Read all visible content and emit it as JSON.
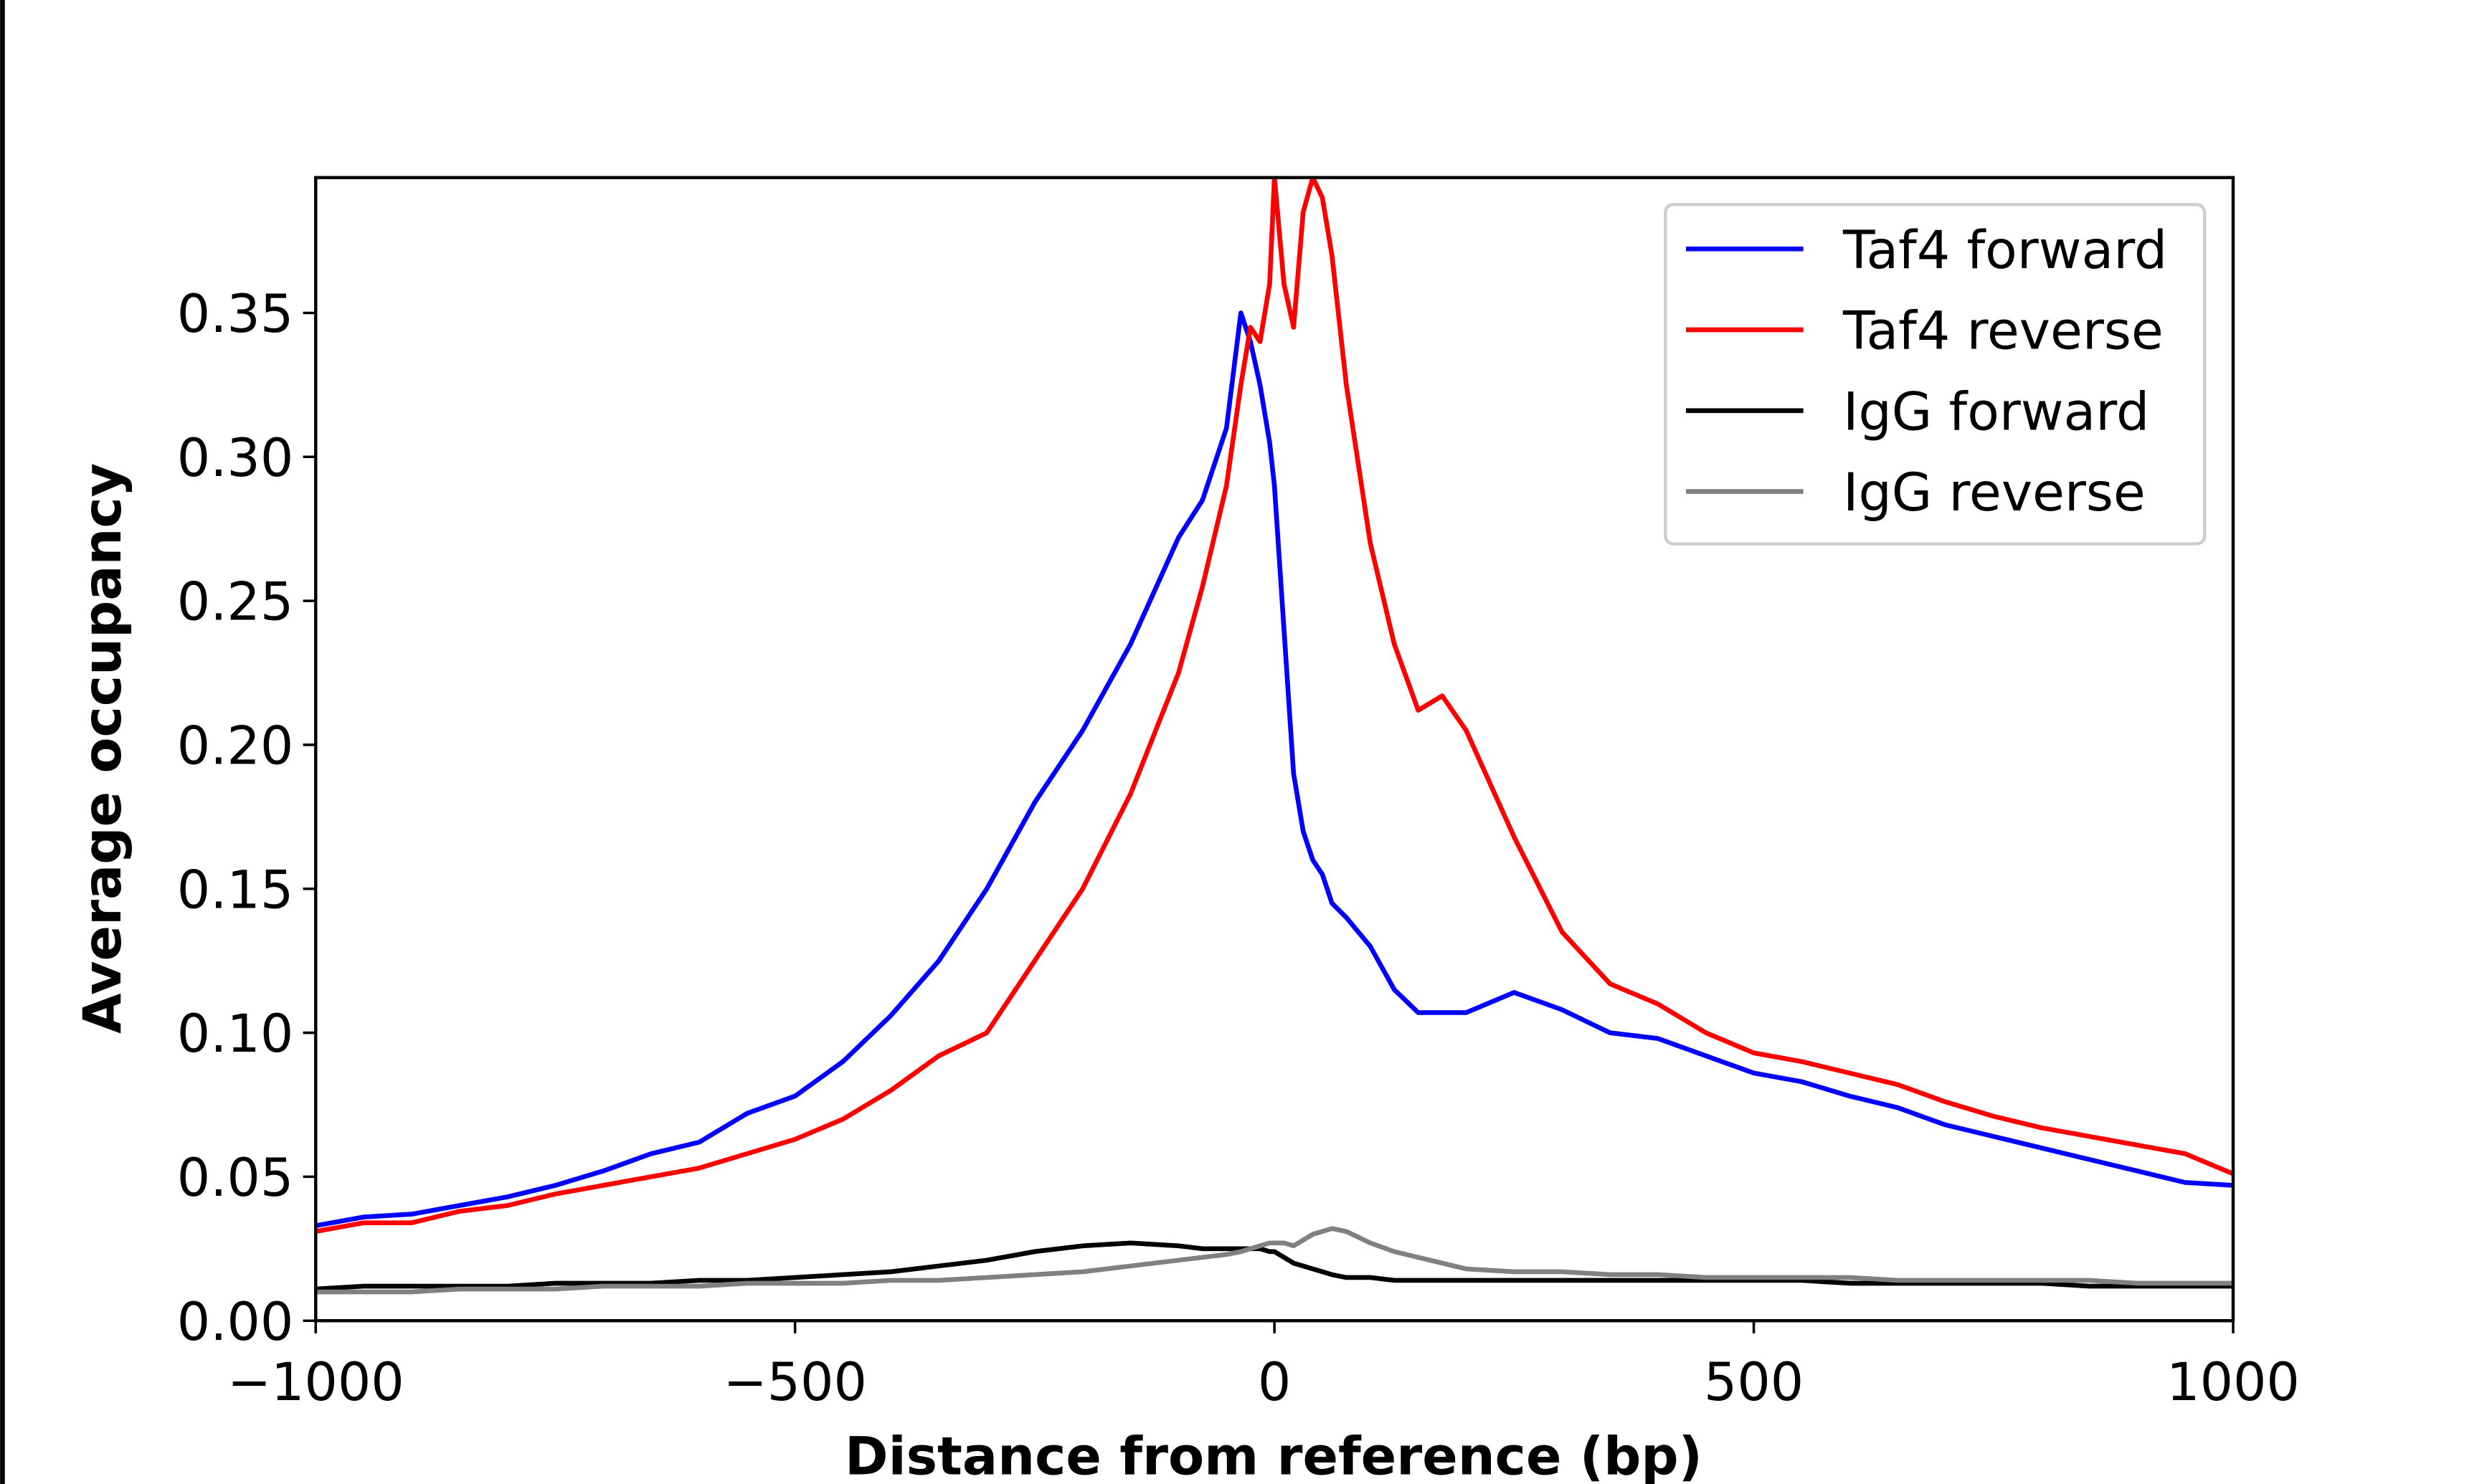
{
  "chart_data": {
    "type": "line",
    "x_label": "Distance from reference (bp)",
    "y_label": "Average occupancy",
    "xlim": [
      -1000,
      1000
    ],
    "ylim": [
      0,
      0.397
    ],
    "xticks": [
      {
        "value": -1000,
        "label": "−1000"
      },
      {
        "value": -500,
        "label": "−500"
      },
      0,
      500,
      1000
    ],
    "yticks": [
      {
        "value": 0,
        "label": "0.00"
      },
      0.05,
      {
        "value": 0.1,
        "label": "0.10"
      },
      0.15,
      {
        "value": 0.2,
        "label": "0.20"
      },
      0.25,
      {
        "value": 0.3,
        "label": "0.30"
      },
      0.35
    ],
    "legend": "upper right",
    "x": [
      -1000,
      -950,
      -900,
      -850,
      -800,
      -750,
      -700,
      -650,
      -600,
      -550,
      -500,
      -450,
      -400,
      -350,
      -300,
      -250,
      -200,
      -150,
      -100,
      -75,
      -50,
      -35,
      -25,
      -15,
      -5,
      0,
      10,
      20,
      30,
      40,
      50,
      60,
      75,
      100,
      125,
      150,
      175,
      200,
      250,
      300,
      350,
      400,
      450,
      500,
      550,
      600,
      650,
      700,
      750,
      800,
      850,
      900,
      950,
      1000
    ],
    "series": [
      {
        "name": "Taf4 forward",
        "color": "#0000ff",
        "values": [
          0.033,
          0.036,
          0.037,
          0.04,
          0.043,
          0.047,
          0.052,
          0.058,
          0.062,
          0.072,
          0.078,
          0.09,
          0.106,
          0.125,
          0.15,
          0.18,
          0.205,
          0.235,
          0.272,
          0.285,
          0.31,
          0.35,
          0.34,
          0.325,
          0.305,
          0.29,
          0.24,
          0.19,
          0.17,
          0.16,
          0.155,
          0.145,
          0.14,
          0.13,
          0.115,
          0.107,
          0.107,
          0.107,
          0.114,
          0.108,
          0.1,
          0.098,
          0.092,
          0.086,
          0.083,
          0.078,
          0.074,
          0.068,
          0.064,
          0.06,
          0.056,
          0.052,
          0.048,
          0.047
        ]
      },
      {
        "name": "Taf4 reverse",
        "color": "#ff0000",
        "values": [
          0.031,
          0.034,
          0.034,
          0.038,
          0.04,
          0.044,
          0.047,
          0.05,
          0.053,
          0.058,
          0.063,
          0.07,
          0.08,
          0.092,
          0.1,
          0.125,
          0.15,
          0.183,
          0.225,
          0.255,
          0.29,
          0.325,
          0.345,
          0.34,
          0.36,
          0.397,
          0.36,
          0.345,
          0.385,
          0.397,
          0.39,
          0.37,
          0.325,
          0.27,
          0.235,
          0.212,
          0.217,
          0.205,
          0.168,
          0.135,
          0.117,
          0.11,
          0.1,
          0.093,
          0.09,
          0.086,
          0.082,
          0.076,
          0.071,
          0.067,
          0.064,
          0.061,
          0.058,
          0.051
        ]
      },
      {
        "name": "IgG forward",
        "color": "#000000",
        "values": [
          0.011,
          0.012,
          0.012,
          0.012,
          0.012,
          0.013,
          0.013,
          0.013,
          0.014,
          0.014,
          0.015,
          0.016,
          0.017,
          0.019,
          0.021,
          0.024,
          0.026,
          0.027,
          0.026,
          0.025,
          0.025,
          0.025,
          0.025,
          0.025,
          0.024,
          0.024,
          0.022,
          0.02,
          0.019,
          0.018,
          0.017,
          0.016,
          0.015,
          0.015,
          0.014,
          0.014,
          0.014,
          0.014,
          0.014,
          0.014,
          0.014,
          0.014,
          0.014,
          0.014,
          0.014,
          0.013,
          0.013,
          0.013,
          0.013,
          0.013,
          0.012,
          0.012,
          0.012,
          0.012
        ]
      },
      {
        "name": "IgG reverse",
        "color": "#808080",
        "values": [
          0.01,
          0.01,
          0.01,
          0.011,
          0.011,
          0.011,
          0.012,
          0.012,
          0.012,
          0.013,
          0.013,
          0.013,
          0.014,
          0.014,
          0.015,
          0.016,
          0.017,
          0.019,
          0.021,
          0.022,
          0.023,
          0.024,
          0.025,
          0.026,
          0.027,
          0.027,
          0.027,
          0.026,
          0.028,
          0.03,
          0.031,
          0.032,
          0.031,
          0.027,
          0.024,
          0.022,
          0.02,
          0.018,
          0.017,
          0.017,
          0.016,
          0.016,
          0.015,
          0.015,
          0.015,
          0.015,
          0.014,
          0.014,
          0.014,
          0.014,
          0.014,
          0.013,
          0.013,
          0.013
        ]
      }
    ]
  }
}
